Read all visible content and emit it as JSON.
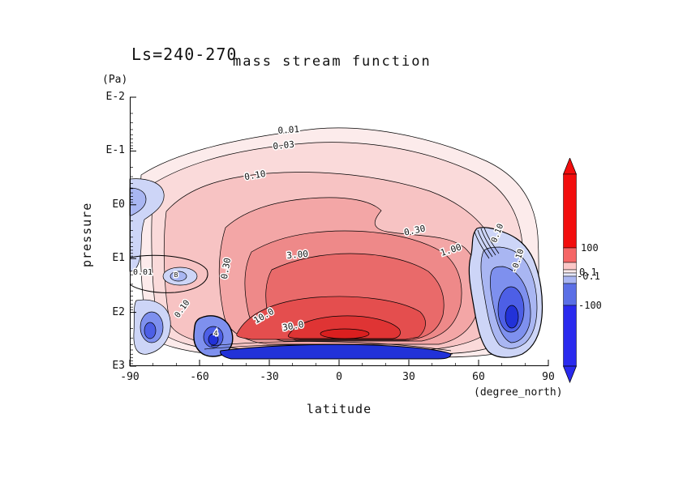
{
  "header": {
    "annotation": "Ls=240-270",
    "title": "mass stream function"
  },
  "axes": {
    "y_unit": "(Pa)",
    "y_label": "pressure",
    "x_label": "latitude",
    "x_unit": "(degree_north)"
  },
  "chart_data": {
    "type": "contour",
    "title": "mass stream function",
    "annotation": "Ls=240-270",
    "xlabel": "latitude",
    "x_unit": "(degree_north)",
    "ylabel": "pressure",
    "y_unit": "(Pa)",
    "x_ticks": [
      "-90",
      "-60",
      "-30",
      "0",
      "30",
      "60",
      "90"
    ],
    "x_range_deg": [
      -90,
      90
    ],
    "y_ticks": [
      "E-2",
      "E-1",
      "E0",
      "E1",
      "E2",
      "E3"
    ],
    "y_scale": "logarithmic pressure (Pa), 1E-2 at top to 1E3 at bottom",
    "contour_levels": [
      0.01,
      0.03,
      0.1,
      0.3,
      1,
      3,
      10,
      30,
      -0.1,
      -0.3,
      -1,
      -3,
      -10,
      -30
    ],
    "line_labels": [
      "0.01",
      "0.03",
      "0.10",
      "0.30",
      "3.00",
      "1.00",
      "10.0",
      "30.0",
      "0.30",
      "0.01",
      "0.10",
      "-0.10",
      "0.10",
      "B",
      "4"
    ],
    "colorbar": {
      "orientation": "vertical",
      "labels": [
        "100",
        "0.1",
        "-0.1",
        "-100"
      ],
      "positive_color": "#f20d0d",
      "negative_color": "#2a2aee"
    },
    "palette": {
      "positive_fills": [
        "#fcebeb",
        "#fadada",
        "#f7c3c3",
        "#f3a6a6",
        "#ee8989",
        "#e96a6a",
        "#e44e4e",
        "#df3434",
        "#da1f1f"
      ],
      "negative_fills": [
        "#cdd5f7",
        "#a9b6f2",
        "#7e90ee",
        "#4d5fe6",
        "#2232d8"
      ]
    },
    "features": [
      "large positive (red) circulation cell spanning ~80S-55N with maximum >30 near 0-20N around E2-E3",
      "strong negative (blue) cell poleward of ~55N between E1 and the bottom boundary",
      "weak negative pockets near 60-80S around E1 and E2-E3",
      "thin negative band along the bottom boundary near E3 from ~55S to ~50N"
    ]
  }
}
